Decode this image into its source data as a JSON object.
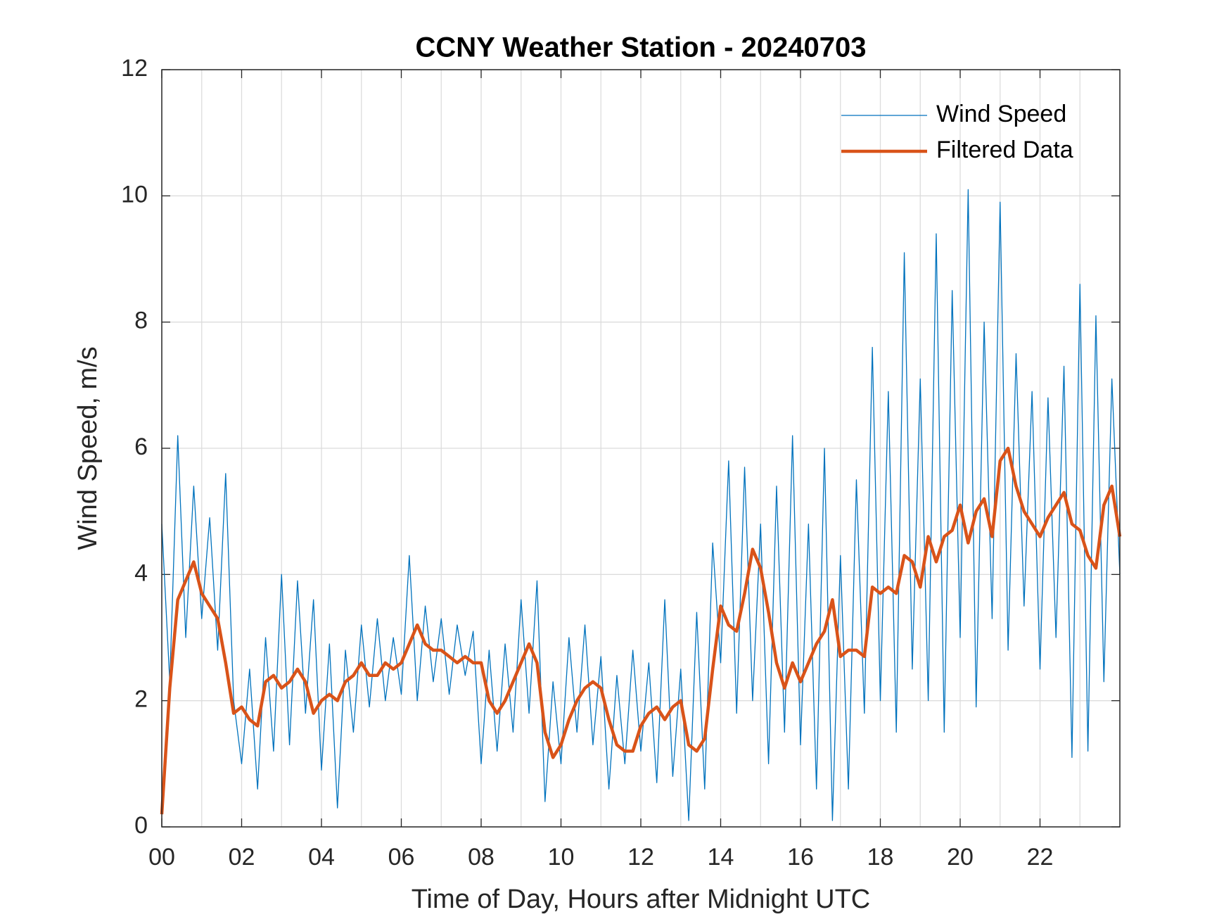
{
  "chart_data": {
    "type": "line",
    "title": "CCNY Weather Station - 20240703",
    "xlabel": "Time of Day, Hours after Midnight UTC",
    "ylabel": "Wind Speed, m/s",
    "x": [
      0,
      0.2,
      0.4,
      0.6,
      0.8,
      1,
      1.2,
      1.4,
      1.6,
      1.8,
      2,
      2.2,
      2.4,
      2.6,
      2.8,
      3,
      3.2,
      3.4,
      3.6,
      3.8,
      4,
      4.2,
      4.4,
      4.6,
      4.8,
      5,
      5.2,
      5.4,
      5.6,
      5.8,
      6,
      6.2,
      6.4,
      6.6,
      6.8,
      7,
      7.2,
      7.4,
      7.6,
      7.8,
      8,
      8.2,
      8.4,
      8.6,
      8.8,
      9,
      9.2,
      9.4,
      9.6,
      9.8,
      10,
      10.2,
      10.4,
      10.6,
      10.8,
      11,
      11.2,
      11.4,
      11.6,
      11.8,
      12,
      12.2,
      12.4,
      12.6,
      12.8,
      13,
      13.2,
      13.4,
      13.6,
      13.8,
      14,
      14.2,
      14.4,
      14.6,
      14.8,
      15,
      15.2,
      15.4,
      15.6,
      15.8,
      16,
      16.2,
      16.4,
      16.6,
      16.8,
      17,
      17.2,
      17.4,
      17.6,
      17.8,
      18,
      18.2,
      18.4,
      18.6,
      18.8,
      19,
      19.2,
      19.4,
      19.6,
      19.8,
      20,
      20.2,
      20.4,
      20.6,
      20.8,
      21,
      21.2,
      21.4,
      21.6,
      21.8,
      22,
      22.2,
      22.4,
      22.6,
      22.8,
      23,
      23.2,
      23.4,
      23.6,
      23.8,
      24
    ],
    "series": [
      {
        "name": "Wind Speed",
        "color": "#0072BD",
        "width": 1.3,
        "values": [
          4.8,
          2.3,
          6.2,
          3.0,
          5.4,
          3.3,
          4.9,
          2.8,
          5.6,
          2.0,
          1.0,
          2.5,
          0.6,
          3.0,
          1.2,
          4.0,
          1.3,
          3.9,
          1.8,
          3.6,
          0.9,
          2.9,
          0.3,
          2.8,
          1.5,
          3.2,
          1.9,
          3.3,
          2.0,
          3.0,
          2.1,
          4.3,
          2.0,
          3.5,
          2.3,
          3.3,
          2.1,
          3.2,
          2.4,
          3.1,
          1.0,
          2.8,
          1.2,
          2.9,
          1.5,
          3.6,
          1.8,
          3.9,
          0.4,
          2.3,
          1.0,
          3.0,
          1.5,
          3.2,
          1.3,
          2.7,
          0.6,
          2.4,
          1.0,
          2.8,
          1.2,
          2.6,
          0.7,
          3.6,
          0.8,
          2.5,
          0.1,
          3.4,
          0.6,
          4.5,
          2.6,
          5.8,
          1.8,
          5.7,
          2.0,
          4.8,
          1.0,
          5.4,
          1.5,
          6.2,
          1.3,
          4.8,
          0.6,
          6.0,
          0.1,
          4.3,
          0.6,
          5.5,
          1.8,
          7.6,
          2.0,
          6.9,
          1.5,
          9.1,
          2.5,
          7.1,
          2.0,
          9.4,
          1.5,
          8.5,
          3.0,
          10.1,
          1.9,
          8.0,
          3.3,
          9.9,
          2.8,
          7.5,
          3.5,
          6.9,
          2.5,
          6.8,
          3.0,
          7.3,
          1.1,
          8.6,
          1.2,
          8.1,
          2.3,
          7.1,
          4.0
        ]
      },
      {
        "name": "Filtered Data",
        "color": "#D95319",
        "width": 4.5,
        "values": [
          0.2,
          2.2,
          3.6,
          3.9,
          4.2,
          3.7,
          3.5,
          3.3,
          2.6,
          1.8,
          1.9,
          1.7,
          1.6,
          2.3,
          2.4,
          2.2,
          2.3,
          2.5,
          2.3,
          1.8,
          2.0,
          2.1,
          2.0,
          2.3,
          2.4,
          2.6,
          2.4,
          2.4,
          2.6,
          2.5,
          2.6,
          2.9,
          3.2,
          2.9,
          2.8,
          2.8,
          2.7,
          2.6,
          2.7,
          2.6,
          2.6,
          2.0,
          1.8,
          2.0,
          2.3,
          2.6,
          2.9,
          2.6,
          1.5,
          1.1,
          1.3,
          1.7,
          2.0,
          2.2,
          2.3,
          2.2,
          1.7,
          1.3,
          1.2,
          1.2,
          1.6,
          1.8,
          1.9,
          1.7,
          1.9,
          2.0,
          1.3,
          1.2,
          1.4,
          2.5,
          3.5,
          3.2,
          3.1,
          3.7,
          4.4,
          4.1,
          3.4,
          2.6,
          2.2,
          2.6,
          2.3,
          2.6,
          2.9,
          3.1,
          3.6,
          2.7,
          2.8,
          2.8,
          2.7,
          3.8,
          3.7,
          3.8,
          3.7,
          4.3,
          4.2,
          3.8,
          4.6,
          4.2,
          4.6,
          4.7,
          5.1,
          4.5,
          5.0,
          5.2,
          4.6,
          5.8,
          6.0,
          5.4,
          5.0,
          4.8,
          4.6,
          4.9,
          5.1,
          5.3,
          4.8,
          4.7,
          4.3,
          4.1,
          5.1,
          5.4,
          4.6
        ]
      }
    ],
    "xlim": [
      0,
      24
    ],
    "xticks": [
      {
        "value": 0,
        "label": "00"
      },
      {
        "value": 2,
        "label": "02"
      },
      {
        "value": 4,
        "label": "04"
      },
      {
        "value": 6,
        "label": "06"
      },
      {
        "value": 8,
        "label": "08"
      },
      10,
      12,
      14,
      16,
      18,
      20,
      22
    ],
    "xminorticks": [
      1,
      3,
      5,
      7,
      9,
      11,
      13,
      15,
      17,
      19,
      21,
      23
    ],
    "ylim": [
      0,
      12
    ],
    "yticks": [
      0,
      2,
      4,
      6,
      8,
      10,
      12
    ],
    "grid": true,
    "legend": "northeast"
  }
}
